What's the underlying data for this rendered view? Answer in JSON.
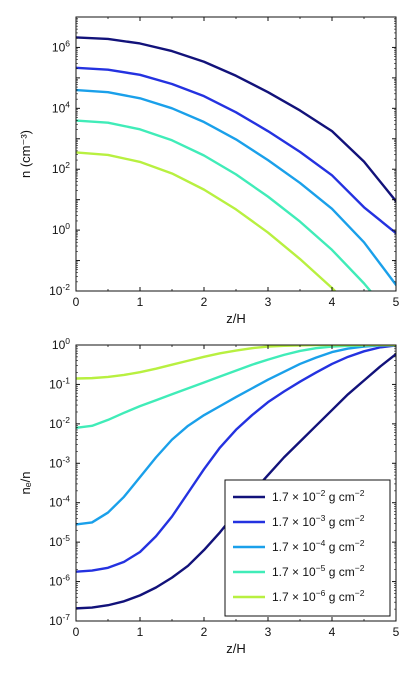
{
  "chart_data": [
    {
      "type": "line",
      "xlabel": "z/H",
      "ylabel": "n (cm⁻³)",
      "ylog": true,
      "xlim": [
        0,
        5
      ],
      "ylim_exp": [
        -2,
        7
      ],
      "xticks": [
        "0",
        "1",
        "2",
        "3",
        "4",
        "5"
      ],
      "yticks": [
        {
          "base": "10",
          "exp": "-2"
        },
        {
          "base": "10",
          "exp": "0"
        },
        {
          "base": "10",
          "exp": "2"
        },
        {
          "base": "10",
          "exp": "4"
        },
        {
          "base": "10",
          "exp": "6"
        }
      ],
      "x": [
        0,
        0.5,
        1,
        1.5,
        2,
        2.5,
        3,
        3.5,
        4,
        4.5,
        5
      ],
      "series": [
        {
          "color": "#12127a",
          "log10_values": [
            6.33,
            6.28,
            6.13,
            5.88,
            5.53,
            5.07,
            4.53,
            3.93,
            3.25,
            2.25,
            0.95
          ]
        },
        {
          "color": "#2432e0",
          "log10_values": [
            5.33,
            5.27,
            5.1,
            4.8,
            4.4,
            3.87,
            3.25,
            2.57,
            1.8,
            0.75,
            -0.1
          ]
        },
        {
          "color": "#1aa0ea",
          "log10_values": [
            4.6,
            4.53,
            4.33,
            4.0,
            3.55,
            2.98,
            2.3,
            1.55,
            0.7,
            -0.4,
            -1.8
          ]
        },
        {
          "color": "#40ecb8",
          "log10_values": [
            3.6,
            3.53,
            3.31,
            2.95,
            2.45,
            1.83,
            1.1,
            0.28,
            -0.65,
            -1.75,
            -3.0
          ]
        },
        {
          "color": "#b8f040",
          "log10_values": [
            2.55,
            2.47,
            2.24,
            1.86,
            1.33,
            0.68,
            -0.08,
            -0.95,
            -1.9,
            -3.0,
            -4.2
          ]
        }
      ]
    },
    {
      "type": "line",
      "xlabel": "z/H",
      "ylabel": "nₑ/n",
      "ylog": true,
      "xlim": [
        0,
        5
      ],
      "ylim_exp": [
        -7,
        0
      ],
      "xticks": [
        "0",
        "1",
        "2",
        "3",
        "4",
        "5"
      ],
      "yticks": [
        {
          "base": "10",
          "exp": "-7"
        },
        {
          "base": "10",
          "exp": "-6"
        },
        {
          "base": "10",
          "exp": "-5"
        },
        {
          "base": "10",
          "exp": "-4"
        },
        {
          "base": "10",
          "exp": "-3"
        },
        {
          "base": "10",
          "exp": "-2"
        },
        {
          "base": "10",
          "exp": "-1"
        },
        {
          "base": "10",
          "exp": "0"
        }
      ],
      "x": [
        0,
        0.25,
        0.5,
        0.75,
        1,
        1.25,
        1.5,
        1.75,
        2,
        2.25,
        2.5,
        2.75,
        3,
        3.25,
        3.5,
        3.75,
        4,
        4.25,
        4.5,
        4.75,
        5
      ],
      "series": [
        {
          "name": "1.7 × 10⁻² g cm⁻²",
          "color": "#12127a",
          "log10_values": [
            -6.68,
            -6.66,
            -6.6,
            -6.5,
            -6.35,
            -6.15,
            -5.9,
            -5.6,
            -5.2,
            -4.75,
            -4.25,
            -3.75,
            -3.3,
            -2.85,
            -2.45,
            -2.05,
            -1.65,
            -1.25,
            -0.9,
            -0.55,
            -0.23
          ]
        },
        {
          "name": "1.7 × 10⁻³ g cm⁻²",
          "color": "#2432e0",
          "log10_values": [
            -5.75,
            -5.72,
            -5.65,
            -5.5,
            -5.25,
            -4.85,
            -4.35,
            -3.75,
            -3.15,
            -2.6,
            -2.15,
            -1.78,
            -1.45,
            -1.18,
            -0.93,
            -0.7,
            -0.48,
            -0.3,
            -0.16,
            -0.06,
            -0.01
          ]
        },
        {
          "name": "1.7 × 10⁻⁴ g cm⁻²",
          "color": "#1aa0ea",
          "log10_values": [
            -4.55,
            -4.5,
            -4.25,
            -3.85,
            -3.35,
            -2.85,
            -2.4,
            -2.05,
            -1.78,
            -1.55,
            -1.32,
            -1.1,
            -0.88,
            -0.68,
            -0.48,
            -0.32,
            -0.18,
            -0.09,
            -0.04,
            -0.01,
            0.0
          ]
        },
        {
          "name": "1.7 × 10⁻⁵ g cm⁻²",
          "color": "#40ecb8",
          "log10_values": [
            -2.1,
            -2.05,
            -1.9,
            -1.72,
            -1.55,
            -1.4,
            -1.25,
            -1.1,
            -0.95,
            -0.8,
            -0.65,
            -0.5,
            -0.37,
            -0.25,
            -0.15,
            -0.08,
            -0.04,
            -0.02,
            -0.01,
            0.0,
            0.0
          ]
        },
        {
          "name": "1.7 × 10⁻⁶ g cm⁻²",
          "color": "#b8f040",
          "log10_values": [
            -0.85,
            -0.84,
            -0.81,
            -0.76,
            -0.69,
            -0.6,
            -0.5,
            -0.4,
            -0.3,
            -0.21,
            -0.14,
            -0.08,
            -0.04,
            -0.02,
            -0.01,
            0.0,
            0.0,
            0.0,
            0.0,
            0.0,
            0.0
          ]
        }
      ],
      "legend": {
        "placement": "bottom-right",
        "entries": [
          {
            "coef": "1.7 × 10",
            "exp": "−2",
            "unit": " g cm",
            "unit_exp": "−2"
          },
          {
            "coef": "1.7 × 10",
            "exp": "−3",
            "unit": " g cm",
            "unit_exp": "−2"
          },
          {
            "coef": "1.7 × 10",
            "exp": "−4",
            "unit": " g cm",
            "unit_exp": "−2"
          },
          {
            "coef": "1.7 × 10",
            "exp": "−5",
            "unit": " g cm",
            "unit_exp": "−2"
          },
          {
            "coef": "1.7 × 10",
            "exp": "−6",
            "unit": " g cm",
            "unit_exp": "−2"
          }
        ]
      }
    }
  ]
}
